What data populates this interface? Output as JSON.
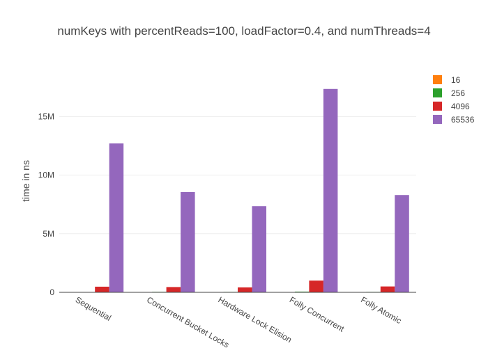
{
  "chart_data": {
    "type": "bar",
    "title": "numKeys with percentReads=100, loadFactor=0.4, and numThreads=4",
    "xlabel": "",
    "ylabel": "time in ns",
    "categories": [
      "Sequential",
      "Concurrent Bucket Locks",
      "Hardware Lock Elision",
      "Folly Concurrent",
      "Folly Atomic"
    ],
    "series": [
      {
        "name": "16",
        "color": "#ff7f0e",
        "values": [
          2000,
          3000,
          3000,
          4000,
          3000
        ]
      },
      {
        "name": "256",
        "color": "#2ca02c",
        "values": [
          30000,
          40000,
          35000,
          60000,
          35000
        ]
      },
      {
        "name": "4096",
        "color": "#d62728",
        "values": [
          480000,
          450000,
          420000,
          1000000,
          500000
        ]
      },
      {
        "name": "65536",
        "color": "#9467bd",
        "values": [
          12700000,
          8550000,
          7350000,
          17350000,
          8300000
        ]
      }
    ],
    "ylim": [
      0,
      19000000
    ],
    "yticks": [
      0,
      5000000,
      10000000,
      15000000
    ],
    "ytick_labels": [
      "0",
      "5M",
      "10M",
      "15M"
    ],
    "grid": true,
    "legend_position": "top-right"
  }
}
